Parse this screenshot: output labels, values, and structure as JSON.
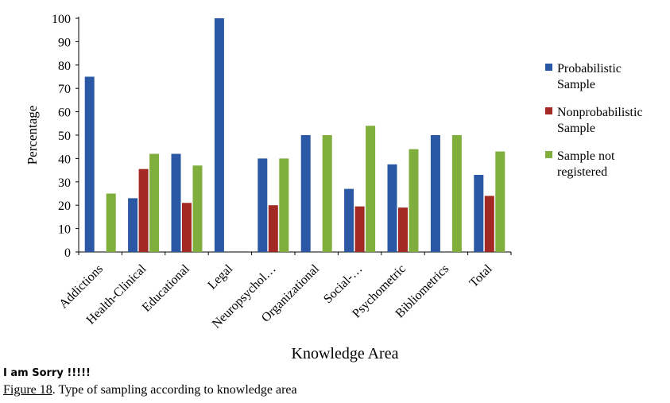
{
  "chart_data": {
    "type": "bar",
    "title": "",
    "xlabel": "Knowledge Area",
    "ylabel": "Percentage",
    "ylim": [
      0,
      100
    ],
    "yticks": [
      0,
      10,
      20,
      30,
      40,
      50,
      60,
      70,
      80,
      90,
      100
    ],
    "categories": [
      "Addictions",
      "Health-Clinical",
      "Educational",
      "Legal",
      "Neuropsychol…",
      "Organizational",
      "Social-…",
      "Psychometric",
      "Bibliometrics",
      "Total"
    ],
    "series": [
      {
        "name": "Probabilistic Sample",
        "legend_lines": [
          "Probabilistic",
          "Sample"
        ],
        "color": "#2A58A4",
        "values": [
          75,
          23,
          42,
          100,
          40,
          50,
          27,
          37.5,
          50,
          33
        ]
      },
      {
        "name": "Nonprobabilistic Sample",
        "legend_lines": [
          "Nonprobabilistic",
          "Sample"
        ],
        "color": "#A32A24",
        "values": [
          0,
          35.5,
          21,
          0,
          20,
          0,
          19.5,
          19,
          0,
          24
        ]
      },
      {
        "name": "Sample not registered",
        "legend_lines": [
          "Sample not",
          "registered"
        ],
        "color": "#7FAE3C",
        "values": [
          25,
          42,
          37,
          0,
          40,
          50,
          54,
          44,
          50,
          43
        ]
      }
    ],
    "legend_position": "right",
    "grid": false
  },
  "note": "I am Sorry !!!!!",
  "caption": {
    "figure_number": "Figure 18",
    "text": ". Type of sampling according to knowledge area"
  }
}
